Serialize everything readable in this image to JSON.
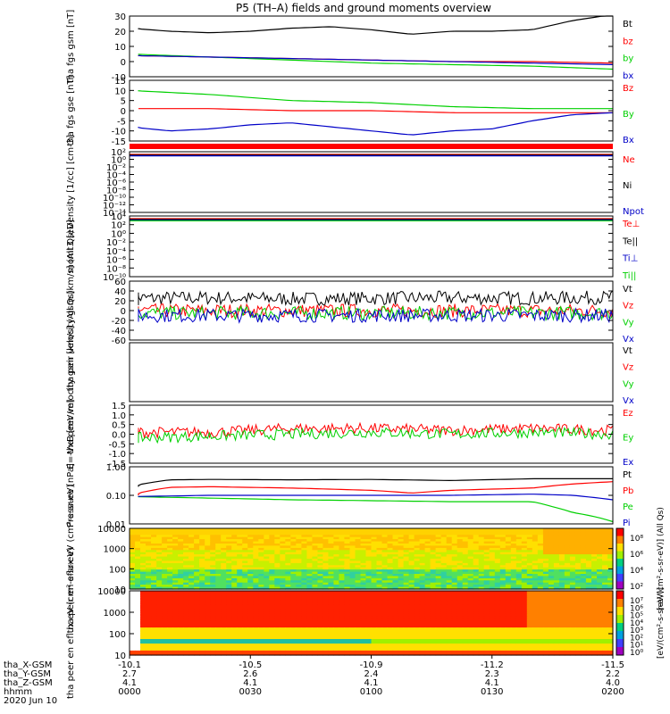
{
  "title": "P5 (TH–A) fields and ground moments overview",
  "colors": {
    "black": "#000000",
    "red": "#ff0000",
    "green": "#00d000",
    "blue": "#0000c8"
  },
  "chart_data": [
    {
      "type": "line",
      "ylabel": "tha fgs gsm [nT]",
      "ylim": [
        -10,
        30
      ],
      "yticks": [
        "30",
        "20",
        "10",
        "0",
        "-10"
      ],
      "legend": [
        "Bt",
        "bz",
        "by",
        "bx"
      ],
      "series": [
        {
          "name": "Bt",
          "color": "black",
          "x": [
            0,
            10,
            20,
            30,
            40,
            50,
            60,
            70,
            80,
            90,
            100,
            110,
            120
          ],
          "values": [
            22,
            20,
            19,
            20,
            22,
            23,
            21,
            18,
            20,
            20,
            21,
            27,
            31
          ]
        },
        {
          "name": "bz",
          "color": "red",
          "x": [
            0,
            20,
            40,
            60,
            80,
            100,
            120
          ],
          "values": [
            4,
            3,
            2,
            1,
            0,
            0,
            -1
          ]
        },
        {
          "name": "by",
          "color": "green",
          "x": [
            0,
            20,
            40,
            60,
            80,
            100,
            120
          ],
          "values": [
            5,
            3,
            1,
            -1,
            -2,
            -3,
            -5
          ]
        },
        {
          "name": "bx",
          "color": "blue",
          "x": [
            0,
            20,
            40,
            60,
            80,
            100,
            120
          ],
          "values": [
            4,
            3,
            2,
            1,
            0,
            -1,
            -2
          ]
        }
      ]
    },
    {
      "type": "line",
      "ylabel": "tha fgs gse [nT]",
      "ylim": [
        -15,
        15
      ],
      "yticks": [
        "15",
        "10",
        "5",
        "0",
        "-5",
        "-10",
        "-15"
      ],
      "legend": [
        "Bz",
        "By",
        "Bx"
      ],
      "series": [
        {
          "name": "Bz",
          "color": "red",
          "x": [
            0,
            20,
            40,
            60,
            80,
            100,
            120
          ],
          "values": [
            1,
            1,
            0,
            0,
            -1,
            -1,
            -1
          ]
        },
        {
          "name": "By",
          "color": "green",
          "x": [
            0,
            20,
            40,
            60,
            80,
            100,
            120
          ],
          "values": [
            10,
            8,
            5,
            4,
            2,
            1,
            1
          ]
        },
        {
          "name": "Bx",
          "color": "blue",
          "x": [
            0,
            10,
            20,
            30,
            40,
            50,
            60,
            70,
            80,
            90,
            100,
            110,
            120
          ],
          "values": [
            -8,
            -10,
            -9,
            -7,
            -6,
            -8,
            -10,
            -12,
            -10,
            -9,
            -5,
            -2,
            -1
          ]
        }
      ]
    },
    {
      "type": "line",
      "ylabel": "Density [1/cc] [cm-3]",
      "ylim": [
        -14,
        2
      ],
      "log": true,
      "yticks": [
        "10²",
        "10⁰",
        "10⁻²",
        "10⁻⁴",
        "10⁻⁶",
        "10⁻⁸",
        "10⁻¹⁰",
        "10⁻¹²",
        "10⁻¹⁴"
      ],
      "legend": [
        "Ne",
        "Ni",
        "Npot"
      ],
      "series": [
        {
          "name": "Ne",
          "color": "red",
          "x": [
            0,
            120
          ],
          "values": [
            1,
            1
          ]
        },
        {
          "name": "Ni",
          "color": "black",
          "x": [
            0,
            120
          ],
          "values": [
            1,
            1
          ]
        },
        {
          "name": "Npot",
          "color": "blue",
          "x": [
            0,
            120
          ],
          "values": [
            1,
            1
          ]
        }
      ]
    },
    {
      "type": "line",
      "ylabel": "momt3 [eV]",
      "ylim": [
        -10,
        4
      ],
      "log": true,
      "yticks": [
        "10⁴",
        "10²",
        "10⁰",
        "10⁻²",
        "10⁻⁴",
        "10⁻⁶",
        "10⁻⁸",
        "10⁻¹⁰"
      ],
      "legend": [
        "Te⊥",
        "Te||",
        "Ti⊥",
        "Ti||"
      ],
      "series": [
        {
          "name": "Te⊥",
          "color": "red",
          "x": [
            0,
            120
          ],
          "values": [
            3,
            3
          ]
        },
        {
          "name": "Te||",
          "color": "black",
          "x": [
            0,
            120
          ],
          "values": [
            3,
            3
          ]
        },
        {
          "name": "Ti⊥",
          "color": "blue",
          "x": [
            0,
            120
          ],
          "values": [
            3,
            3
          ]
        },
        {
          "name": "Ti||",
          "color": "green",
          "x": [
            0,
            120
          ],
          "values": [
            3,
            3
          ]
        }
      ]
    },
    {
      "type": "line",
      "ylabel": "tha peir velocity gsm [km/s] (All Qs)",
      "ylim": [
        -60,
        60
      ],
      "yticks": [
        "60",
        "40",
        "20",
        "0",
        "-20",
        "-40",
        "-60"
      ],
      "legend": [
        "Vt",
        "Vz",
        "Vy",
        "Vx"
      ],
      "series": [
        {
          "name": "Vt",
          "color": "black",
          "x": [
            0,
            20,
            40,
            60,
            80,
            100,
            120
          ],
          "values": [
            25,
            26,
            24,
            25,
            26,
            25,
            27
          ]
        },
        {
          "name": "Vz",
          "color": "red",
          "x": [
            0,
            120
          ],
          "values": [
            0,
            0
          ]
        },
        {
          "name": "Vy",
          "color": "green",
          "x": [
            0,
            120
          ],
          "values": [
            -5,
            -5
          ]
        },
        {
          "name": "Vx",
          "color": "blue",
          "x": [
            0,
            120
          ],
          "values": [
            -10,
            -10
          ]
        }
      ]
    },
    {
      "type": "line",
      "ylabel": "tha peer velocity gsm [km/s] (All Qs)",
      "ylim": [
        0,
        1
      ],
      "yticks": [],
      "legend": [
        "Vt",
        "Vz",
        "Vy",
        "Vx"
      ],
      "series": []
    },
    {
      "type": "line",
      "ylabel": "E=-VxB [mV/m]",
      "ylim": [
        -1.5,
        1.5
      ],
      "yticks": [
        "1.5",
        "1.0",
        "0.5",
        "0.0",
        "-0.5",
        "-1.0",
        "-1.5"
      ],
      "legend": [
        "Ez",
        "Ey",
        "Ex"
      ],
      "series": [
        {
          "name": "Ez",
          "color": "red",
          "x": [
            0,
            20,
            40,
            60,
            80,
            100,
            120
          ],
          "values": [
            0.1,
            0.1,
            0.3,
            0.3,
            0.2,
            0.3,
            0.2
          ]
        },
        {
          "name": "Ey",
          "color": "green",
          "x": [
            0,
            20,
            40,
            60,
            80,
            100,
            120
          ],
          "values": [
            -0.2,
            -0.1,
            0.0,
            0.1,
            0.0,
            0.1,
            0.0
          ]
        }
      ]
    },
    {
      "type": "line",
      "ylabel": "Pressure [nPa]",
      "ylim": [
        0.01,
        1
      ],
      "log": true,
      "yticks": [
        "1.00",
        "0.10",
        "0.01"
      ],
      "legend": [
        "Pt",
        "Pb",
        "Pe",
        "Pi"
      ],
      "series": [
        {
          "name": "Pt",
          "color": "black",
          "x": [
            0,
            10,
            20,
            40,
            60,
            80,
            100,
            120
          ],
          "values": [
            0.2,
            0.35,
            0.36,
            0.35,
            0.36,
            0.33,
            0.38,
            0.38
          ]
        },
        {
          "name": "Pb",
          "color": "red",
          "x": [
            0,
            10,
            20,
            40,
            60,
            70,
            80,
            100,
            110,
            120
          ],
          "values": [
            0.1,
            0.19,
            0.2,
            0.18,
            0.15,
            0.12,
            0.15,
            0.18,
            0.25,
            0.3
          ]
        },
        {
          "name": "Pe",
          "color": "green",
          "x": [
            0,
            20,
            40,
            60,
            80,
            100,
            105,
            110,
            120
          ],
          "values": [
            0.09,
            0.08,
            0.07,
            0.065,
            0.06,
            0.06,
            0.04,
            0.025,
            0.012
          ]
        },
        {
          "name": "Pi",
          "color": "blue",
          "x": [
            0,
            20,
            40,
            60,
            80,
            100,
            110,
            120
          ],
          "values": [
            0.09,
            0.1,
            0.1,
            0.1,
            0.1,
            0.11,
            0.1,
            0.07
          ]
        }
      ]
    },
    {
      "type": "heatmap",
      "ylabel": "tha peir en eflux eV (cm²-s-sr-eV)",
      "ylim": [
        5,
        20000
      ],
      "log": true,
      "yticks": [
        "10000",
        "1000",
        "100",
        "10"
      ],
      "colorbar_label": "[eV/(cm²-s-sr-eV)] (All Qs)",
      "colorbar_ticks": [
        "10⁸",
        "10⁶",
        "10⁴",
        "10²"
      ]
    },
    {
      "type": "heatmap",
      "ylabel": "tha peer en eflux eV (cm²-s-sr-eV)",
      "ylim": [
        5,
        20000
      ],
      "log": true,
      "yticks": [
        "10000",
        "1000",
        "100",
        "10"
      ],
      "colorbar_label": "[eV/(cm²-s-sr-eV)]",
      "colorbar_ticks": [
        "10⁷",
        "10⁶",
        "10⁵",
        "10⁴",
        "10³",
        "10²",
        "10¹",
        "10⁰"
      ]
    }
  ],
  "xaxis": {
    "row_labels": [
      "tha_X-GSM",
      "tha_Y-GSM",
      "tha_Z-GSM",
      "hhmm",
      "2020 Jun 10"
    ],
    "ticks": [
      {
        "values": [
          "-10.1",
          "2.7",
          "4.1",
          "0000"
        ]
      },
      {
        "values": [
          "-10.5",
          "2.6",
          "4.1",
          "0030"
        ]
      },
      {
        "values": [
          "-10.9",
          "2.4",
          "4.1",
          "0100"
        ]
      },
      {
        "values": [
          "-11.2",
          "2.3",
          "4.1",
          "0130"
        ]
      },
      {
        "values": [
          "-11.5",
          "2.2",
          "4.0",
          "0200"
        ]
      }
    ]
  }
}
